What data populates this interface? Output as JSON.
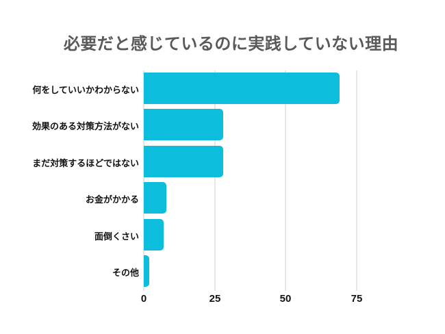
{
  "page": {
    "background": "#ffffff"
  },
  "title": {
    "text": "必要だと感じているのに実践していない理由",
    "color": "#595959"
  },
  "chart_data": {
    "type": "bar",
    "orientation": "horizontal",
    "title": "必要だと感じているのに実践していない理由",
    "categories": [
      "何をしていいかわからない",
      "効果のある対策方法がない",
      "まだ対策するほどではない",
      "お金がかかる",
      "面倒くさい",
      "その他"
    ],
    "values": [
      69,
      28,
      28,
      8,
      7,
      2
    ],
    "x_ticks": [
      0,
      25,
      50,
      75
    ],
    "xlim": [
      0,
      93
    ],
    "xlabel": "",
    "ylabel": "",
    "grid": true,
    "legend": false,
    "bar_color": "#0cbedb",
    "gridline_color": "#e6e6e6",
    "tick_label_color": "#111111",
    "category_label_color": "#111111"
  }
}
